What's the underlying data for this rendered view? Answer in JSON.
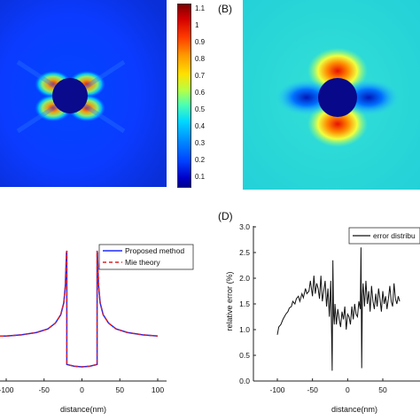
{
  "panels": {
    "b_letter": "(B)",
    "d_letter": "(D)"
  },
  "colorbar": {
    "ticks": [
      "1.1",
      "1",
      "0.9",
      "0.8",
      "0.7",
      "0.6",
      "0.5",
      "0.4",
      "0.3",
      "0.2",
      "0.1"
    ]
  },
  "chart_data": [
    {
      "type": "line",
      "xlabel": "distance(nm)",
      "xticks": [
        "-100",
        "-50",
        "0",
        "50",
        "100"
      ],
      "xlim": [
        -100,
        100
      ],
      "legend": {
        "position": "top-right",
        "entries": [
          "Proposed method",
          "Mie theory"
        ]
      },
      "series": [
        {
          "name": "Proposed method",
          "color": "#1f2bff",
          "style": "solid",
          "x": [
            -110,
            -100,
            -80,
            -60,
            -45,
            -35,
            -28,
            -24,
            -22,
            -21,
            -20.5,
            -20,
            -20,
            -10,
            0,
            10,
            20,
            20,
            20.5,
            21,
            22,
            24,
            28,
            35,
            45,
            60,
            80,
            100
          ],
          "y": [
            0.3,
            0.3,
            0.31,
            0.33,
            0.36,
            0.41,
            0.48,
            0.58,
            0.72,
            0.9,
            1.0,
            1.02,
            0.06,
            0.045,
            0.04,
            0.045,
            0.06,
            1.02,
            1.0,
            0.9,
            0.72,
            0.58,
            0.48,
            0.41,
            0.36,
            0.33,
            0.31,
            0.3
          ]
        },
        {
          "name": "Mie theory",
          "color": "#e02020",
          "style": "dashed",
          "x": [
            -110,
            -100,
            -80,
            -60,
            -45,
            -35,
            -28,
            -24,
            -22,
            -21,
            -20.5,
            -20,
            -20,
            -10,
            0,
            10,
            20,
            20,
            20.5,
            21,
            22,
            24,
            28,
            35,
            45,
            60,
            80,
            100
          ],
          "y": [
            0.3,
            0.3,
            0.31,
            0.33,
            0.36,
            0.41,
            0.48,
            0.58,
            0.72,
            0.9,
            1.0,
            1.02,
            0.06,
            0.045,
            0.04,
            0.045,
            0.06,
            1.02,
            1.0,
            0.9,
            0.72,
            0.58,
            0.48,
            0.41,
            0.36,
            0.33,
            0.31,
            0.3
          ]
        }
      ]
    },
    {
      "type": "line",
      "xlabel": "distance(nm)",
      "ylabel": "relative error (%)",
      "xticks": [
        "-100",
        "-50",
        "0",
        "50"
      ],
      "yticks": [
        "0.0",
        "0.5",
        "1.0",
        "1.5",
        "2.0",
        "2.5",
        "3.0"
      ],
      "xlim": [
        -110,
        75
      ],
      "ylim": [
        0,
        3.0
      ],
      "legend": {
        "position": "top-right",
        "entries": [
          "error distribu"
        ]
      },
      "series": [
        {
          "name": "error distribu",
          "color": "#111111",
          "x": [
            -100,
            -98,
            -95,
            -92,
            -90,
            -88,
            -85,
            -83,
            -80,
            -78,
            -75,
            -73,
            -70,
            -68,
            -65,
            -63,
            -60,
            -58,
            -55,
            -53,
            -50,
            -48,
            -46,
            -44,
            -42,
            -40,
            -38,
            -36,
            -34,
            -32,
            -30,
            -28,
            -26,
            -24,
            -22,
            -21,
            -20,
            -19,
            -18,
            -16,
            -14,
            -12,
            -10,
            -8,
            -6,
            -4,
            -2,
            0,
            2,
            4,
            6,
            8,
            10,
            12,
            14,
            16,
            18,
            19,
            20,
            21,
            22,
            24,
            26,
            28,
            30,
            32,
            34,
            36,
            38,
            40,
            42,
            44,
            46,
            48,
            50,
            52,
            54,
            56,
            58,
            60,
            62,
            64,
            66,
            68,
            70,
            72,
            74
          ],
          "y": [
            0.9,
            1.05,
            1.1,
            1.2,
            1.25,
            1.3,
            1.35,
            1.42,
            1.45,
            1.55,
            1.5,
            1.6,
            1.65,
            1.55,
            1.7,
            1.62,
            1.8,
            1.7,
            1.75,
            1.95,
            1.65,
            2.05,
            1.7,
            1.9,
            1.8,
            1.6,
            2.05,
            1.55,
            1.75,
            1.95,
            1.45,
            1.8,
            1.25,
            1.95,
            0.2,
            2.35,
            1.3,
            1.1,
            1.5,
            1.1,
            1.4,
            1.2,
            1.05,
            1.35,
            1.2,
            1.45,
            1.0,
            1.3,
            1.25,
            1.1,
            1.45,
            1.2,
            1.5,
            1.3,
            1.25,
            1.55,
            1.4,
            2.6,
            0.25,
            1.65,
            1.9,
            1.45,
            1.95,
            1.5,
            1.75,
            1.35,
            1.85,
            1.55,
            1.4,
            1.7,
            1.45,
            1.8,
            1.6,
            1.35,
            1.75,
            1.5,
            1.65,
            1.4,
            1.6,
            1.85,
            1.55,
            1.45,
            1.9,
            1.6,
            1.5,
            1.65,
            1.55
          ]
        }
      ]
    }
  ]
}
